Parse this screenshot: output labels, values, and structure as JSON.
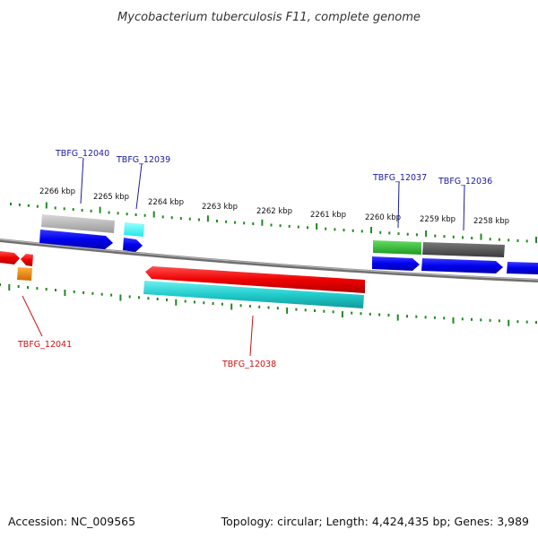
{
  "title": "Mycobacterium tuberculosis F11, complete genome",
  "footer": {
    "accession": "Accession: NC_009565",
    "summary": "Topology: circular; Length: 4,424,435 bp; Genes: 3,989"
  },
  "kbp_ticks": [
    "2266 kbp",
    "2265 kbp",
    "2264 kbp",
    "2263 kbp",
    "2262 kbp",
    "2261 kbp",
    "2260 kbp",
    "2259 kbp",
    "2258 kbp"
  ],
  "gene_labels": {
    "tbfg_12040": "TBFG_12040",
    "tbfg_12039": "TBFG_12039",
    "tbfg_12037": "TBFG_12037",
    "tbfg_12036": "TBFG_12036",
    "tbfg_12041": "TBFG_12041",
    "tbfg_12038": "TBFG_12038"
  },
  "colors": {
    "forward_label": "#1a1aa0",
    "reverse_label": "#cc1111",
    "tick": "#1f8a1f",
    "backbone": "#8a8a8a"
  }
}
